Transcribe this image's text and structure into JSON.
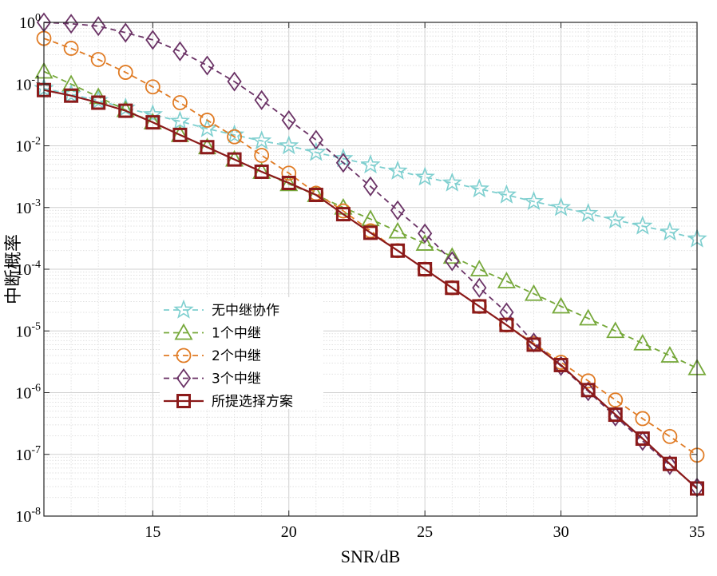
{
  "chart_data": {
    "type": "line",
    "title": "",
    "xlabel": "SNR/dB",
    "ylabel": "中断概率",
    "xlim": [
      11,
      35
    ],
    "ylim": [
      1e-08,
      1
    ],
    "yscale": "log",
    "grid": true,
    "x_ticks": [
      15,
      20,
      25,
      30,
      35
    ],
    "y_ticks": [
      {
        "base": "10",
        "exp": "0"
      },
      {
        "base": "10",
        "exp": "-1"
      },
      {
        "base": "10",
        "exp": "-2"
      },
      {
        "base": "10",
        "exp": "-3"
      },
      {
        "base": "10",
        "exp": "-4"
      },
      {
        "base": "10",
        "exp": "-5"
      },
      {
        "base": "10",
        "exp": "-6"
      },
      {
        "base": "10",
        "exp": "-7"
      },
      {
        "base": "10",
        "exp": "-8"
      }
    ],
    "legend_position": "center-left",
    "x": [
      11,
      12,
      13,
      14,
      15,
      16,
      17,
      18,
      19,
      20,
      21,
      22,
      23,
      24,
      25,
      26,
      27,
      28,
      29,
      30,
      31,
      32,
      33,
      34,
      35
    ],
    "series": [
      {
        "name": "无中继协作",
        "color": "#7ecfcf",
        "marker": "star",
        "line": "dashed",
        "values": [
          0.085,
          0.068,
          0.054,
          0.041,
          0.032,
          0.025,
          0.019,
          0.015,
          0.012,
          0.01,
          0.0078,
          0.0062,
          0.0049,
          0.0039,
          0.0031,
          0.0025,
          0.002,
          0.0016,
          0.00125,
          0.001,
          0.0008,
          0.00063,
          0.0005,
          0.0004,
          0.00031
        ]
      },
      {
        "name": "1个中继",
        "color": "#76a83a",
        "marker": "triangle",
        "line": "dashed",
        "values": [
          0.16,
          0.1,
          0.062,
          0.038,
          0.024,
          0.015,
          0.0095,
          0.006,
          0.0038,
          0.0024,
          0.0016,
          0.001,
          0.00065,
          0.00041,
          0.00026,
          0.00016,
          0.0001,
          6.4e-05,
          4e-05,
          2.5e-05,
          1.6e-05,
          1e-05,
          6.3e-06,
          4e-06,
          2.5e-06
        ]
      },
      {
        "name": "2个中继",
        "color": "#e07b24",
        "marker": "circle",
        "line": "dashed",
        "values": [
          0.55,
          0.38,
          0.25,
          0.155,
          0.09,
          0.05,
          0.026,
          0.014,
          0.007,
          0.0036,
          0.0017,
          0.00088,
          0.00042,
          0.0002,
          0.0001,
          5e-05,
          2.5e-05,
          1.25e-05,
          6.3e-06,
          3.1e-06,
          1.55e-06,
          7.6e-07,
          3.8e-07,
          1.95e-07,
          9.7e-08
        ]
      },
      {
        "name": "3个中继",
        "color": "#6b3366",
        "marker": "diamond",
        "line": "dashed",
        "values": [
          1.0,
          0.95,
          0.87,
          0.68,
          0.52,
          0.34,
          0.2,
          0.11,
          0.055,
          0.026,
          0.0125,
          0.0053,
          0.0022,
          0.0009,
          0.00038,
          0.000135,
          5e-05,
          2e-05,
          6.5e-06,
          2.7e-06,
          1.05e-06,
          4.1e-07,
          1.65e-07,
          6.7e-08,
          2.9e-08
        ]
      },
      {
        "name": "所提选择方案",
        "color": "#8b1a1a",
        "marker": "square",
        "line": "solid",
        "values": [
          0.08,
          0.065,
          0.05,
          0.037,
          0.024,
          0.015,
          0.0095,
          0.006,
          0.0038,
          0.0025,
          0.0016,
          0.00078,
          0.00039,
          0.0002,
          0.0001,
          5e-05,
          2.5e-05,
          1.25e-05,
          6e-06,
          2.8e-06,
          1.1e-06,
          4.4e-07,
          1.8e-07,
          7e-08,
          2.8e-08
        ]
      }
    ]
  }
}
